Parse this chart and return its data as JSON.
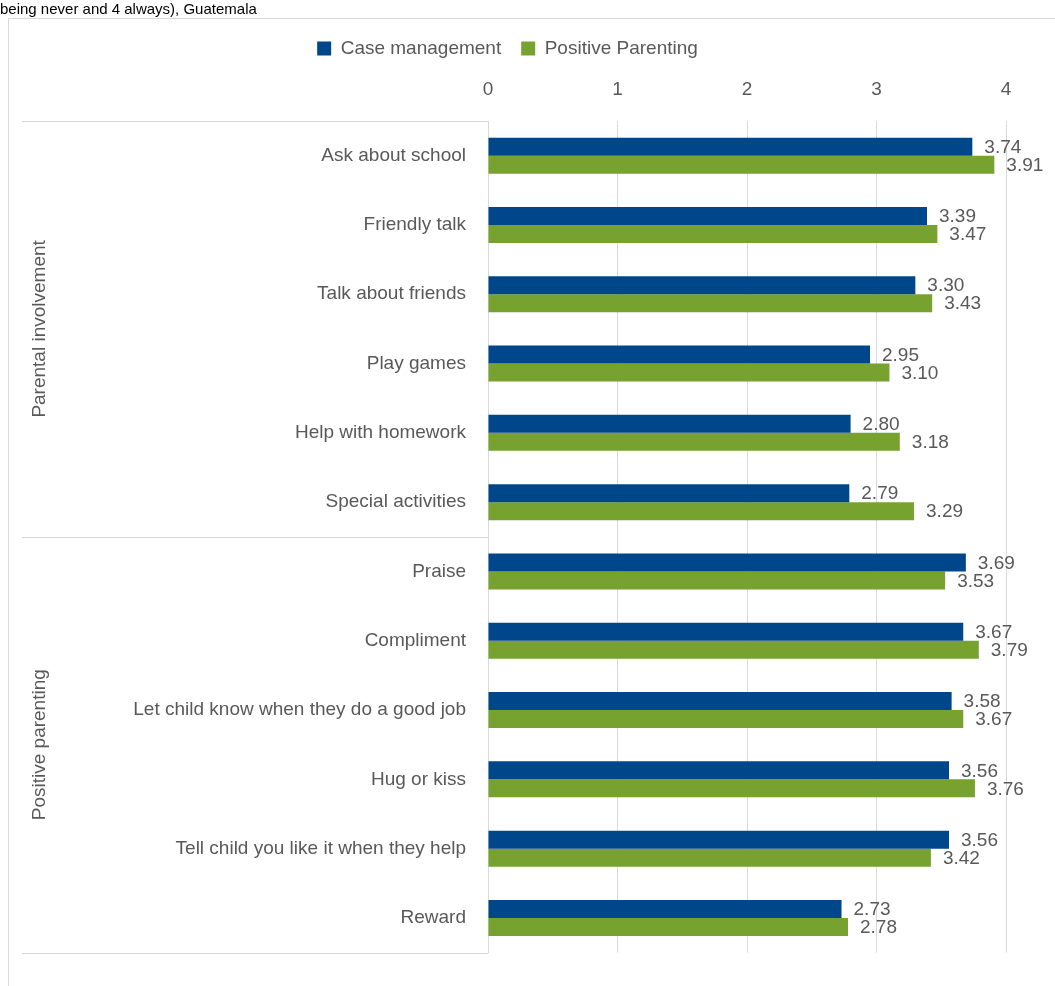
{
  "chart_data": {
    "type": "bar",
    "orientation": "horizontal",
    "title": "being never and 4 always), Guatemala",
    "categories": [
      "Ask about school",
      "Friendly talk",
      "Talk about friends",
      "Play games",
      "Help with homework",
      "Special activities",
      "Praise",
      "Compliment",
      "Let child know when they do a good job",
      "Hug or kiss",
      "Tell child you like it when they help",
      "Reward"
    ],
    "series": [
      {
        "name": "Case management",
        "color": "#00468b",
        "values": [
          3.74,
          3.39,
          3.3,
          2.95,
          2.8,
          2.79,
          3.69,
          3.67,
          3.58,
          3.56,
          3.56,
          2.73
        ],
        "value_labels": [
          "3.74",
          "3.39",
          "3.30",
          "2.95",
          "2.80",
          "2.79",
          "3.69",
          "3.67",
          "3.58",
          "3.56",
          "3.56",
          "2.73"
        ]
      },
      {
        "name": "Positive Parenting",
        "color": "#78a22f",
        "values": [
          3.91,
          3.47,
          3.43,
          3.1,
          3.18,
          3.29,
          3.53,
          3.79,
          3.67,
          3.76,
          3.42,
          2.78
        ],
        "value_labels": [
          "3.91",
          "3.47",
          "3.43",
          "3.10",
          "3.18",
          "3.29",
          "3.53",
          "3.79",
          "3.67",
          "3.76",
          "3.42",
          "2.78"
        ]
      }
    ],
    "xlim": [
      0,
      4
    ],
    "xticks": [
      0,
      1,
      2,
      3,
      4
    ],
    "grid": "x",
    "legend": "top",
    "annotations": [
      "Parental involvement",
      "Positive parenting"
    ]
  }
}
